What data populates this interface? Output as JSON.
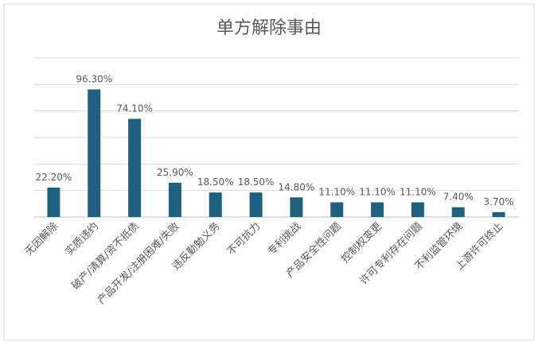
{
  "chart_data": {
    "type": "bar",
    "title": "单方解除事由",
    "categories": [
      "无因解除",
      "实质违约",
      "破产/清算/资不抵债",
      "产品开发/注册困难/失败",
      "违反勤勉义务",
      "不可抗力",
      "专利挑战",
      "产品安全性问题",
      "控制权变更",
      "许可专利存在问题",
      "不利监管环境",
      "上游许可终止"
    ],
    "values": [
      22.2,
      96.3,
      74.1,
      25.9,
      18.5,
      18.5,
      14.8,
      11.1,
      11.1,
      11.1,
      7.4,
      3.7
    ],
    "data_labels": [
      "22.20%",
      "96.30%",
      "74.10%",
      "25.90%",
      "18.50%",
      "18.50%",
      "14.80%",
      "11.10%",
      "11.10%",
      "11.10%",
      "7.40%",
      "3.70%"
    ],
    "ylim": [
      0,
      120
    ],
    "y_gridlines": [
      0,
      20,
      40,
      60,
      80,
      100,
      120
    ],
    "grid": true,
    "legend": "none",
    "bar_color": "#1f5f7f",
    "grid_color": "#d9d9d9",
    "border_color": "#d9d9d9",
    "title_color": "#595959",
    "label_color": "#595959"
  }
}
